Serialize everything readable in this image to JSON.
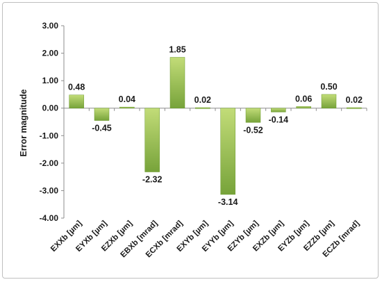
{
  "chart_data": {
    "type": "bar",
    "title": "",
    "xlabel": "",
    "ylabel": "Error magnitude",
    "ylim": [
      -4.0,
      3.0
    ],
    "yticks": [
      "3.00",
      "2.00",
      "1.00",
      "0.00",
      "-1.00",
      "-2.00",
      "-3.00",
      "-4.00"
    ],
    "ytick_values": [
      3,
      2,
      1,
      0,
      -1,
      -2,
      -3,
      -4
    ],
    "categories": [
      "EXXb [µm]",
      "EYXb [µm]",
      "EZXb [µm]",
      "EBXb [mrad]",
      "ECXb [mrad]",
      "EXYb [µm]",
      "EYYb [µm]",
      "EZYb [µm]",
      "EXZb [µm]",
      "EYZb [µm]",
      "EZZb [µm]",
      "ECZb [mrad]"
    ],
    "values": [
      0.48,
      -0.45,
      0.04,
      -2.32,
      1.85,
      0.02,
      -3.14,
      -0.52,
      -0.14,
      0.06,
      0.5,
      0.02
    ],
    "value_labels": [
      "0.48",
      "-0.45",
      "0.04",
      "-2.32",
      "1.85",
      "0.02",
      "-3.14",
      "-0.52",
      "-0.14",
      "0.06",
      "0.50",
      "0.02"
    ],
    "grid": false,
    "legend": "none",
    "bar_color_light": "#c2dc78",
    "bar_color_dark": "#77a33a"
  }
}
